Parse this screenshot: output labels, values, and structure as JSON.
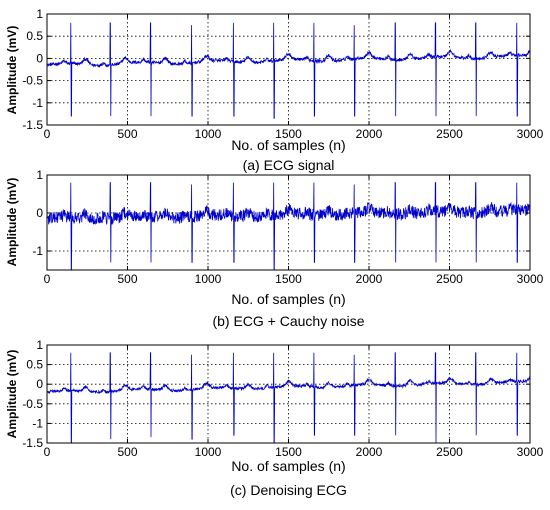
{
  "chart_data": [
    {
      "type": "line",
      "caption": "(a) ECG signal",
      "xlabel": "No. of samples (n)",
      "ylabel": "Amplitude (mV)",
      "xlim": [
        0,
        3000
      ],
      "ylim": [
        -1.5,
        1
      ],
      "xticks": [
        0,
        500,
        1000,
        1500,
        2000,
        2500,
        3000
      ],
      "yticks": [
        -1.5,
        -1,
        -0.5,
        0,
        0.5,
        1
      ],
      "ytick_labels": [
        "-1.5",
        "-1",
        "-0.5",
        "0",
        "0.5",
        "1"
      ],
      "grid": true,
      "line_color": "#0000cc",
      "noise_level": "low",
      "baseline_start": -0.15,
      "baseline_end": 0.05,
      "beat_positions": [
        150,
        395,
        645,
        900,
        1160,
        1410,
        1660,
        1910,
        2165,
        2415,
        2665,
        2920
      ],
      "beat_peaks": [
        0.8,
        0.8,
        0.8,
        0.75,
        0.8,
        0.8,
        0.8,
        0.75,
        0.8,
        0.8,
        0.8,
        0.8
      ],
      "beat_troughs": [
        -1.3,
        -1.3,
        -1.3,
        -1.3,
        -1.3,
        -1.35,
        -1.3,
        -1.3,
        -1.3,
        -1.3,
        -1.3,
        -1.3
      ]
    },
    {
      "type": "line",
      "caption": "(b) ECG + Cauchy noise",
      "xlabel": "No. of samples (n)",
      "ylabel": "Amplitude (mV)",
      "xlim": [
        0,
        3000
      ],
      "ylim": [
        -1.5,
        1
      ],
      "xticks": [
        0,
        500,
        1000,
        1500,
        2000,
        2500,
        3000
      ],
      "yticks": [
        -1,
        0,
        1
      ],
      "ytick_labels": [
        "-1",
        "0",
        "1"
      ],
      "grid": true,
      "line_color": "#0000cc",
      "noise_level": "high",
      "baseline_start": -0.15,
      "baseline_end": 0.05,
      "beat_positions": [
        150,
        395,
        645,
        900,
        1160,
        1410,
        1660,
        1910,
        2165,
        2415,
        2665,
        2920
      ],
      "beat_peaks": [
        0.8,
        0.8,
        0.8,
        0.75,
        0.8,
        0.8,
        0.8,
        0.75,
        0.8,
        0.8,
        0.8,
        0.8
      ],
      "beat_troughs": [
        -1.5,
        -1.3,
        -1.3,
        -1.3,
        -1.3,
        -1.5,
        -1.3,
        -1.3,
        -1.3,
        -1.3,
        -1.3,
        -1.3
      ]
    },
    {
      "type": "line",
      "caption": "(c) Denoising ECG",
      "xlabel": "No. of samples (n)",
      "ylabel": "Amplitude (mV)",
      "xlim": [
        0,
        3000
      ],
      "ylim": [
        -1.5,
        1
      ],
      "xticks": [
        0,
        500,
        1000,
        1500,
        2000,
        2500,
        3000
      ],
      "yticks": [
        -1.5,
        -1,
        -0.5,
        0,
        0.5,
        1
      ],
      "ytick_labels": [
        "-1.5",
        "-1",
        "-0.5",
        "0",
        "0.5",
        "1"
      ],
      "grid": true,
      "line_color": "#0000cc",
      "noise_level": "low",
      "baseline_start": -0.2,
      "baseline_end": 0.05,
      "beat_positions": [
        150,
        395,
        645,
        900,
        1160,
        1410,
        1660,
        1910,
        2165,
        2415,
        2665,
        2920
      ],
      "beat_peaks": [
        0.8,
        0.8,
        0.8,
        0.75,
        0.8,
        0.8,
        0.8,
        0.75,
        0.8,
        0.8,
        0.8,
        0.8
      ],
      "beat_troughs": [
        -1.5,
        -1.4,
        -1.35,
        -1.4,
        -1.3,
        -1.5,
        -1.3,
        -1.3,
        -1.3,
        -1.5,
        -1.3,
        -1.3
      ]
    }
  ]
}
